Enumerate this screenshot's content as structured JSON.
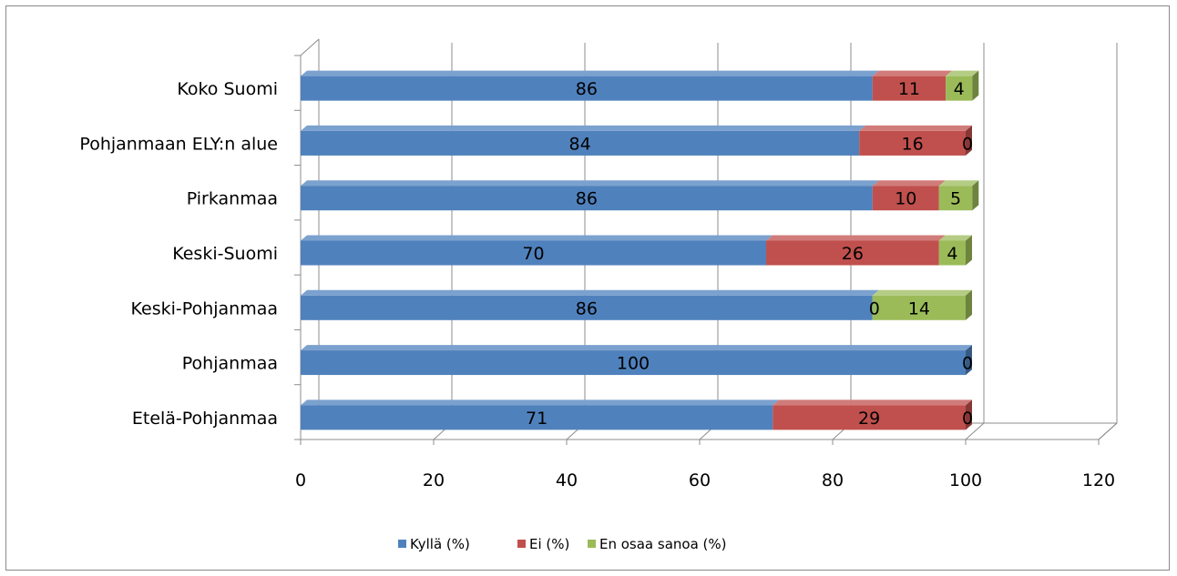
{
  "chart_data": {
    "type": "bar",
    "orientation": "horizontal",
    "stacked": true,
    "three_d": true,
    "title": "",
    "xlabel": "",
    "ylabel": "",
    "xlim": [
      0,
      120
    ],
    "x_ticks": [
      0,
      20,
      40,
      60,
      80,
      100,
      120
    ],
    "grid": true,
    "legend_position": "bottom",
    "categories": [
      "Koko Suomi",
      "Pohjanmaan ELY:n alue",
      "Pirkanmaa",
      "Keski-Suomi",
      "Keski-Pohjanmaa",
      "Pohjanmaa",
      "Etelä-Pohjanmaa"
    ],
    "series": [
      {
        "name": "Kyllä (%)",
        "color": "#4f81bd",
        "values": [
          86,
          84,
          86,
          70,
          86,
          100,
          71
        ]
      },
      {
        "name": "Ei (%)",
        "color": "#c0504d",
        "values": [
          11,
          16,
          10,
          26,
          0,
          null,
          29
        ]
      },
      {
        "name": "En osaa sanoa (%)",
        "color": "#9bbb59",
        "values": [
          4,
          0,
          5,
          4,
          14,
          0,
          0
        ]
      }
    ]
  }
}
